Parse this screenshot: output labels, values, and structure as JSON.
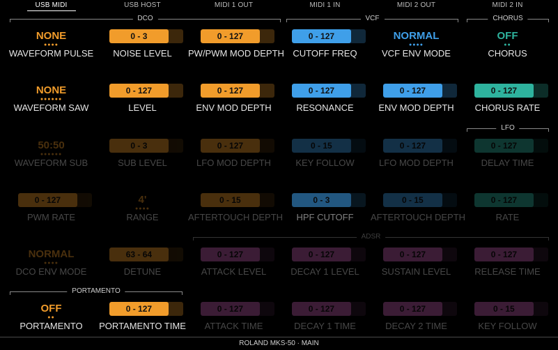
{
  "tabs": [
    {
      "label": "USB MIDI",
      "active": true
    },
    {
      "label": "USB HOST",
      "active": false
    },
    {
      "label": "MIDI 1 OUT",
      "active": false
    },
    {
      "label": "MIDI 1 IN",
      "active": false
    },
    {
      "label": "MIDI 2 OUT",
      "active": false
    },
    {
      "label": "MIDI 2 IN",
      "active": false
    }
  ],
  "sections": {
    "dco": "DCO",
    "vcf": "VCF",
    "chorus": "CHORUS",
    "lfo": "LFO",
    "adsr": "ADSR",
    "portamento": "PORTAMENTO"
  },
  "colors": {
    "orange": "#f19c2b",
    "blue": "#3f9fe9",
    "teal": "#2eb39e",
    "purple": "#c25cb0"
  },
  "params": [
    [
      {
        "label": "WAVEFORM PULSE",
        "type": "text",
        "value": "NONE",
        "color": "orange",
        "dots": 4
      },
      {
        "label": "NOISE LEVEL",
        "type": "bar",
        "value": "0 - 3",
        "color": "orange"
      },
      {
        "label": "PW/PWM MOD DEPTH",
        "type": "bar",
        "value": "0 - 127",
        "color": "orange"
      },
      {
        "label": "CUTOFF FREQ",
        "type": "bar",
        "value": "0 - 127",
        "color": "blue"
      },
      {
        "label": "VCF ENV MODE",
        "type": "text",
        "value": "NORMAL",
        "color": "blue",
        "dots": 4
      },
      {
        "label": "CHORUS",
        "type": "text",
        "value": "OFF",
        "color": "teal",
        "dots": 2
      }
    ],
    [
      {
        "label": "WAVEFORM SAW",
        "type": "text",
        "value": "NONE",
        "color": "orange",
        "dots": 6
      },
      {
        "label": "LEVEL",
        "type": "bar",
        "value": "0 - 127",
        "color": "orange"
      },
      {
        "label": "ENV MOD DEPTH",
        "type": "bar",
        "value": "0 - 127",
        "color": "orange"
      },
      {
        "label": "RESONANCE",
        "type": "bar",
        "value": "0 - 127",
        "color": "blue"
      },
      {
        "label": "ENV MOD DEPTH",
        "type": "bar",
        "value": "0 - 127",
        "color": "blue"
      },
      {
        "label": "CHORUS RATE",
        "type": "bar",
        "value": "0 - 127",
        "color": "teal"
      }
    ],
    [
      {
        "label": "WAVEFORM SUB",
        "type": "text",
        "value": "50:50",
        "color": "orange",
        "dots": 6
      },
      {
        "label": "SUB LEVEL",
        "type": "bar",
        "value": "0 - 3",
        "color": "orange"
      },
      {
        "label": "LFO MOD DEPTH",
        "type": "bar",
        "value": "0 - 127",
        "color": "orange"
      },
      {
        "label": "KEY FOLLOW",
        "type": "bar",
        "value": "0 - 15",
        "color": "blue"
      },
      {
        "label": "LFO MOD DEPTH",
        "type": "bar",
        "value": "0 - 127",
        "color": "blue"
      },
      {
        "label": "DELAY TIME",
        "type": "bar",
        "value": "0 - 127",
        "color": "teal"
      }
    ],
    [
      {
        "label": "PWM RATE",
        "type": "bar",
        "value": "0 - 127",
        "color": "orange"
      },
      {
        "label": "RANGE",
        "type": "text",
        "value": "4'",
        "color": "orange",
        "dots": 4
      },
      {
        "label": "AFTERTOUCH DEPTH",
        "type": "bar",
        "value": "0 - 15",
        "color": "orange"
      },
      {
        "label": "HPF CUTOFF",
        "type": "bar",
        "value": "0 - 3",
        "color": "blue"
      },
      {
        "label": "AFTERTOUCH DEPTH",
        "type": "bar",
        "value": "0 - 15",
        "color": "blue"
      },
      {
        "label": "RATE",
        "type": "bar",
        "value": "0 - 127",
        "color": "teal"
      }
    ],
    [
      {
        "label": "DCO ENV MODE",
        "type": "text",
        "value": "NORMAL",
        "color": "orange",
        "dots": 4
      },
      {
        "label": "DETUNE",
        "type": "bar",
        "value": "63 - 64",
        "color": "orange"
      },
      {
        "label": "ATTACK LEVEL",
        "type": "bar",
        "value": "0 - 127",
        "color": "purple"
      },
      {
        "label": "DECAY 1 LEVEL",
        "type": "bar",
        "value": "0 - 127",
        "color": "purple"
      },
      {
        "label": "SUSTAIN LEVEL",
        "type": "bar",
        "value": "0 - 127",
        "color": "purple"
      },
      {
        "label": "RELEASE TIME",
        "type": "bar",
        "value": "0 - 127",
        "color": "purple"
      }
    ],
    [
      {
        "label": "PORTAMENTO",
        "type": "text",
        "value": "OFF",
        "color": "orange",
        "dots": 2
      },
      {
        "label": "PORTAMENTO TIME",
        "type": "bar",
        "value": "0 - 127",
        "color": "orange"
      },
      {
        "label": "ATTACK TIME",
        "type": "bar",
        "value": "0 - 127",
        "color": "purple"
      },
      {
        "label": "DECAY 1 TIME",
        "type": "bar",
        "value": "0 - 127",
        "color": "purple"
      },
      {
        "label": "DECAY 2 TIME",
        "type": "bar",
        "value": "0 - 127",
        "color": "purple"
      },
      {
        "label": "KEY FOLLOW",
        "type": "bar",
        "value": "0 - 15",
        "color": "purple"
      }
    ]
  ],
  "footer": "ROLAND MKS-50 · MAIN"
}
